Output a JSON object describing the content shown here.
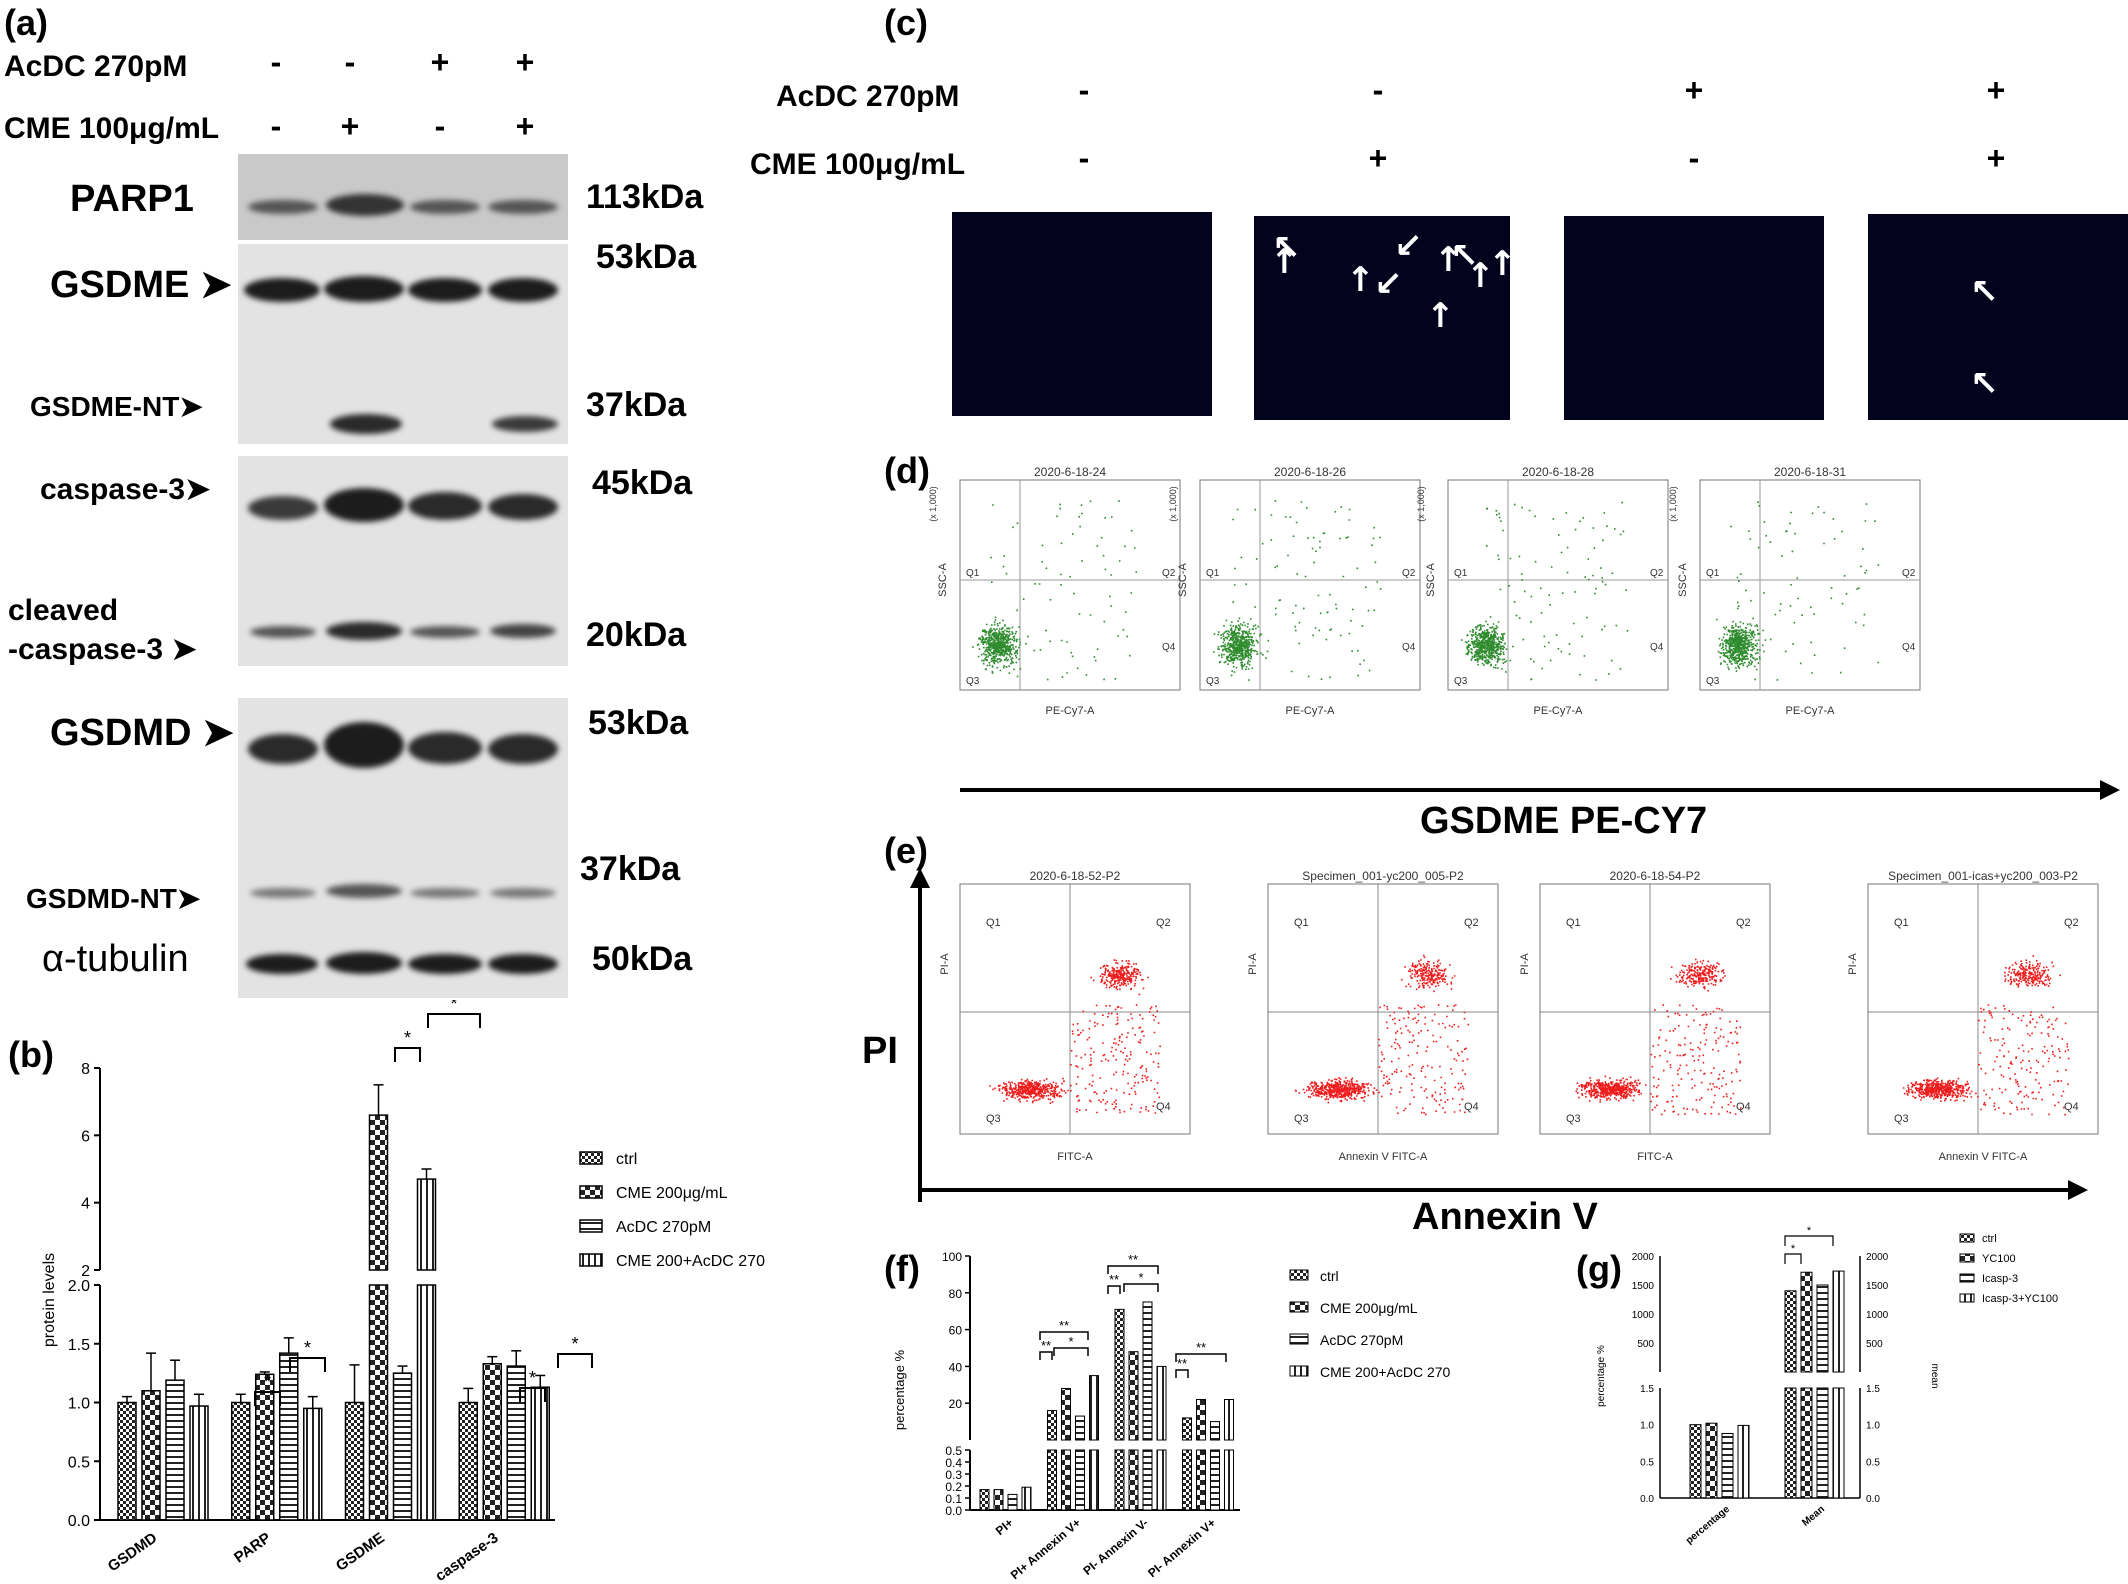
{
  "panels": {
    "a": "(a)",
    "b": "(b)",
    "c": "(c)",
    "d": "(d)",
    "e": "(e)",
    "f": "(f)",
    "g": "(g)"
  },
  "panel_a": {
    "cond1_label": "AcDC 270pM",
    "cond2_label": "CME 100μg/mL",
    "cond1_signs": [
      "-",
      "-",
      "+",
      "+"
    ],
    "cond2_signs": [
      "-",
      "+",
      "-",
      "+"
    ],
    "bands": {
      "parp1": "PARP1",
      "gsdme": "GSDME",
      "gsdme_nt": "GSDME-NT",
      "caspase3": "caspase-3",
      "cleaved1": "cleaved",
      "cleaved2": "-caspase-3",
      "gsdmd": "GSDMD",
      "gsdmd_nt": "GSDMD-NT",
      "tubulin": "α-tubulin"
    },
    "kda": [
      "113kDa",
      "53kDa",
      "37kDa",
      "45kDa",
      "20kDa",
      "53kDa",
      "37kDa",
      "50kDa"
    ]
  },
  "panel_c": {
    "cond1_label": "AcDC 270pM",
    "cond2_label": "CME 100μg/mL",
    "cond1_signs": [
      "-",
      "-",
      "+",
      "+"
    ],
    "cond2_signs": [
      "-",
      "+",
      "-",
      "+"
    ]
  },
  "panel_d": {
    "titles": [
      "2020-6-18-24",
      "2020-6-18-26",
      "2020-6-18-28",
      "2020-6-18-31"
    ],
    "xlabel": "PE-Cy7-A",
    "ylabel": "SSC-A",
    "scale_note": "(x 1,000)",
    "quadrants": [
      "Q1",
      "Q2",
      "Q3",
      "Q4"
    ],
    "axis_title": "GSDME PE-CY7"
  },
  "panel_e": {
    "titles": [
      "2020-6-18-52-P2",
      "Specimen_001-yc200_005-P2",
      "2020-6-18-54-P2",
      "Specimen_001-icas+yc200_003-P2"
    ],
    "xlabels": [
      "FITC-A",
      "Annexin V FITC-A",
      "FITC-A",
      "Annexin V FITC-A"
    ],
    "ylabel": "PI-A",
    "quadrants": [
      "Q1",
      "Q2",
      "Q3",
      "Q4"
    ],
    "y_axis_title": "PI",
    "x_axis_title": "Annexin V"
  },
  "chart_data": [
    {
      "type": "bar",
      "panel": "b",
      "categories": [
        "GSDMD",
        "PARP",
        "GSDME",
        "caspase-3"
      ],
      "series": [
        {
          "name": "ctrl",
          "values": [
            1.0,
            1.0,
            1.0,
            1.0
          ],
          "errors": [
            0.05,
            0.07,
            0.32,
            0.12
          ]
        },
        {
          "name": "CME 200μg/mL",
          "values": [
            1.1,
            1.24,
            6.6,
            1.33
          ],
          "errors": [
            0.32,
            0.02,
            0.9,
            0.06
          ]
        },
        {
          "name": "AcDC 270pM",
          "values": [
            1.19,
            1.42,
            1.25,
            1.31
          ],
          "errors": [
            0.17,
            0.13,
            0.06,
            0.13
          ]
        },
        {
          "name": "CME 200+AcDC 270",
          "values": [
            0.97,
            0.95,
            4.7,
            1.13
          ],
          "errors": [
            0.1,
            0.1,
            0.3,
            0.1
          ]
        }
      ],
      "ylabel": "protein levels",
      "ylim": [
        0,
        8
      ],
      "axis_break": [
        2.0,
        2.0
      ],
      "yticks": [
        "0.0",
        "0.5",
        "1.0",
        "1.5",
        "2.0",
        "2",
        "4",
        "6",
        "8"
      ],
      "significance": [
        "*",
        "*",
        "*",
        "*",
        "*",
        "*",
        "*"
      ]
    },
    {
      "type": "bar",
      "panel": "f",
      "categories": [
        "PI+",
        "PI+ Annexin V+",
        "PI- Annexin V-",
        "PI- Annexin V+"
      ],
      "series": [
        {
          "name": "ctrl",
          "values": [
            0.17,
            16,
            71,
            12
          ]
        },
        {
          "name": "CME 200μg/mL",
          "values": [
            0.17,
            28,
            48,
            22
          ]
        },
        {
          "name": "AcDC 270pM",
          "values": [
            0.13,
            13,
            75,
            10
          ]
        },
        {
          "name": "CME 200+AcDC 270",
          "values": [
            0.19,
            35,
            40,
            22
          ]
        }
      ],
      "ylabel": "percentage %",
      "ylim": [
        0,
        100
      ],
      "yticks": [
        "0.0",
        "0.1",
        "0.2",
        "0.3",
        "0.4",
        "0.5",
        "20",
        "40",
        "60",
        "80",
        "100"
      ],
      "significance": [
        "**",
        "**",
        "*",
        "**",
        "**",
        "*",
        "**",
        "**"
      ]
    },
    {
      "type": "bar",
      "panel": "g",
      "categories": [
        "percentage",
        "Mean"
      ],
      "series": [
        {
          "name": "ctrl",
          "values": [
            1.0,
            1400
          ]
        },
        {
          "name": "YC100",
          "values": [
            1.02,
            1720
          ]
        },
        {
          "name": "Icasp-3",
          "values": [
            0.88,
            1500
          ]
        },
        {
          "name": "Icasp-3+YC100",
          "values": [
            0.99,
            1740
          ]
        }
      ],
      "ylabel": "percentage %",
      "y2label": "mean",
      "yticks_left": [
        "0.0",
        "0.5",
        "1.0",
        "1.5",
        "500",
        "1000",
        "1500",
        "2000"
      ],
      "yticks_right": [
        "0.0",
        "0.5",
        "1.0",
        "1.5",
        "500",
        "1000",
        "1500",
        "2000"
      ],
      "significance": [
        "*",
        "*"
      ]
    }
  ]
}
